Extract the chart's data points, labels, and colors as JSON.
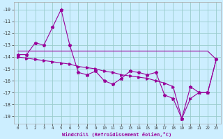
{
  "xlabel": "Windchill (Refroidissement éolien,°C)",
  "bg_color": "#cceeff",
  "grid_color": "#99cccc",
  "line_color": "#990099",
  "xlim": [
    -0.5,
    23.5
  ],
  "ylim": [
    -19.6,
    -9.4
  ],
  "yticks": [
    -10,
    -11,
    -12,
    -13,
    -14,
    -15,
    -16,
    -17,
    -18,
    -19
  ],
  "xticks": [
    0,
    1,
    2,
    3,
    4,
    5,
    6,
    7,
    8,
    9,
    10,
    11,
    12,
    13,
    14,
    15,
    16,
    17,
    18,
    19,
    20,
    21,
    22,
    23
  ],
  "line1_x": [
    0,
    1,
    2,
    3,
    4,
    5,
    6,
    7,
    8,
    9,
    10,
    11,
    12,
    13,
    14,
    15,
    16,
    17,
    18,
    19,
    20,
    21,
    22,
    23
  ],
  "line1_y": [
    -13.5,
    -13.5,
    -13.5,
    -13.5,
    -13.5,
    -13.5,
    -13.5,
    -13.5,
    -13.5,
    -13.5,
    -13.5,
    -13.5,
    -13.5,
    -13.5,
    -13.5,
    -13.5,
    -13.5,
    -13.5,
    -13.5,
    -13.5,
    -13.5,
    -13.5,
    -13.5,
    -14.2
  ],
  "line2_x": [
    0,
    1,
    2,
    3,
    4,
    5,
    6,
    7,
    8,
    9,
    10,
    11,
    12,
    13,
    14,
    15,
    16,
    17,
    18,
    19,
    20,
    21,
    22,
    23
  ],
  "line2_y": [
    -13.8,
    -13.8,
    -12.8,
    -13.0,
    -11.5,
    -10.0,
    -13.0,
    -15.3,
    -15.5,
    -15.2,
    -16.0,
    -16.3,
    -15.8,
    -15.2,
    -15.3,
    -15.5,
    -15.3,
    -17.2,
    -17.5,
    -19.2,
    -16.5,
    -17.0,
    -17.0,
    -14.2
  ],
  "line3_x": [
    0,
    1,
    2,
    3,
    4,
    5,
    6,
    7,
    8,
    9,
    10,
    11,
    12,
    13,
    14,
    15,
    16,
    17,
    18,
    19,
    20,
    21,
    22,
    23
  ],
  "line3_y": [
    -14.0,
    -14.1,
    -14.2,
    -14.3,
    -14.4,
    -14.5,
    -14.6,
    -14.8,
    -14.9,
    -15.0,
    -15.2,
    -15.3,
    -15.5,
    -15.6,
    -15.7,
    -15.8,
    -16.0,
    -16.2,
    -16.5,
    -19.2,
    -17.5,
    -17.0,
    -17.0,
    -14.2
  ]
}
